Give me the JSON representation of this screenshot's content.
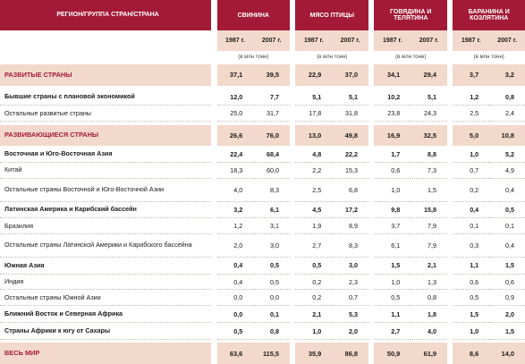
{
  "header": {
    "region_col": "РЕГИОН/ГРУППА СТРАН/СТРАНА",
    "groups": [
      "СВИНИНА",
      "МЯСО ПТИЦЫ",
      "ГОВЯДИНА И ТЕЛЯТИНА",
      "БАРАНИНА И КОЗЛЯТИНА"
    ],
    "years": [
      "1987 г.",
      "2007 г."
    ],
    "unit": "(в млн тонн)"
  },
  "rows": [
    {
      "label": "РАЗВИТЫЕ СТРАНЫ",
      "style": "hl",
      "values": [
        "37,1",
        "39,5",
        "22,9",
        "37,0",
        "34,1",
        "29,4",
        "3,7",
        "3,2"
      ]
    },
    {
      "label": "Бывшие страны с плановой экономикой",
      "style": "bold",
      "values": [
        "12,0",
        "7,7",
        "5,1",
        "5,1",
        "10,2",
        "5,1",
        "1,2",
        "0,8"
      ]
    },
    {
      "label": "Остальные развитые страны",
      "style": "normal",
      "values": [
        "25,0",
        "31,7",
        "17,8",
        "31,8",
        "23,8",
        "24,3",
        "2,5",
        "2,4"
      ]
    },
    {
      "label": "РАЗВИВАЮЩИЕСЯ СТРАНЫ",
      "style": "hl",
      "values": [
        "26,6",
        "76,0",
        "13,0",
        "49,8",
        "16,9",
        "32,5",
        "5,0",
        "10,8"
      ]
    },
    {
      "label": "Восточная и Юго-Восточная Азия",
      "style": "bold",
      "values": [
        "22,4",
        "68,4",
        "4,8",
        "22,2",
        "1,7",
        "8,8",
        "1,0",
        "5,2"
      ]
    },
    {
      "label": "Китай",
      "style": "normal",
      "values": [
        "18,3",
        "60,0",
        "2,2",
        "15,3",
        "0,6",
        "7,3",
        "0,7",
        "4,9"
      ]
    },
    {
      "label": "Остальные страны Восточной и Юго-Восточной Азии",
      "style": "normal",
      "values": [
        "4,0",
        "8,3",
        "2,5",
        "6,8",
        "1,0",
        "1,5",
        "0,2",
        "0,4"
      ]
    },
    {
      "label": "Латинская Америка и Карибский бассейн",
      "style": "bold",
      "values": [
        "3,2",
        "6,1",
        "4,5",
        "17,2",
        "9,8",
        "15,8",
        "0,4",
        "0,5"
      ]
    },
    {
      "label": "Бразилия",
      "style": "normal",
      "values": [
        "1,2",
        "3,1",
        "1,9",
        "8,9",
        "3,7",
        "7,9",
        "0,1",
        "0,1"
      ]
    },
    {
      "label": "Остальные страны Латинской Америки и Карибского бассейна",
      "style": "normal",
      "values": [
        "2,0",
        "3,0",
        "2,7",
        "8,3",
        "6,1",
        "7,9",
        "0,3",
        "0,4"
      ]
    },
    {
      "label": "Южная Азия",
      "style": "bold",
      "values": [
        "0,4",
        "0,5",
        "0,5",
        "3,0",
        "1,5",
        "2,1",
        "1,1",
        "1,5"
      ]
    },
    {
      "label": "Индия",
      "style": "normal",
      "values": [
        "0,4",
        "0,5",
        "0,2",
        "2,3",
        "1,0",
        "1,3",
        "0,6",
        "0,6"
      ]
    },
    {
      "label": "Остальные страны Южной Азии",
      "style": "normal",
      "values": [
        "0,0",
        "0,0",
        "0,2",
        "0,7",
        "0,5",
        "0,8",
        "0,5",
        "0,9"
      ]
    },
    {
      "label": "Ближний Восток и Северная Африка",
      "style": "bold",
      "values": [
        "0,0",
        "0,1",
        "2,1",
        "5,3",
        "1,1",
        "1,8",
        "1,5",
        "2,0"
      ]
    },
    {
      "label": "Страны Африки к югу от Сахары",
      "style": "bold",
      "values": [
        "0,5",
        "0,8",
        "1,0",
        "2,0",
        "2,7",
        "4,0",
        "1,0",
        "1,5"
      ]
    },
    {
      "label": "ВЕСЬ МИР",
      "style": "hl",
      "values": [
        "63,6",
        "115,5",
        "35,9",
        "86,8",
        "50,9",
        "61,9",
        "8,6",
        "14,0"
      ]
    }
  ]
}
